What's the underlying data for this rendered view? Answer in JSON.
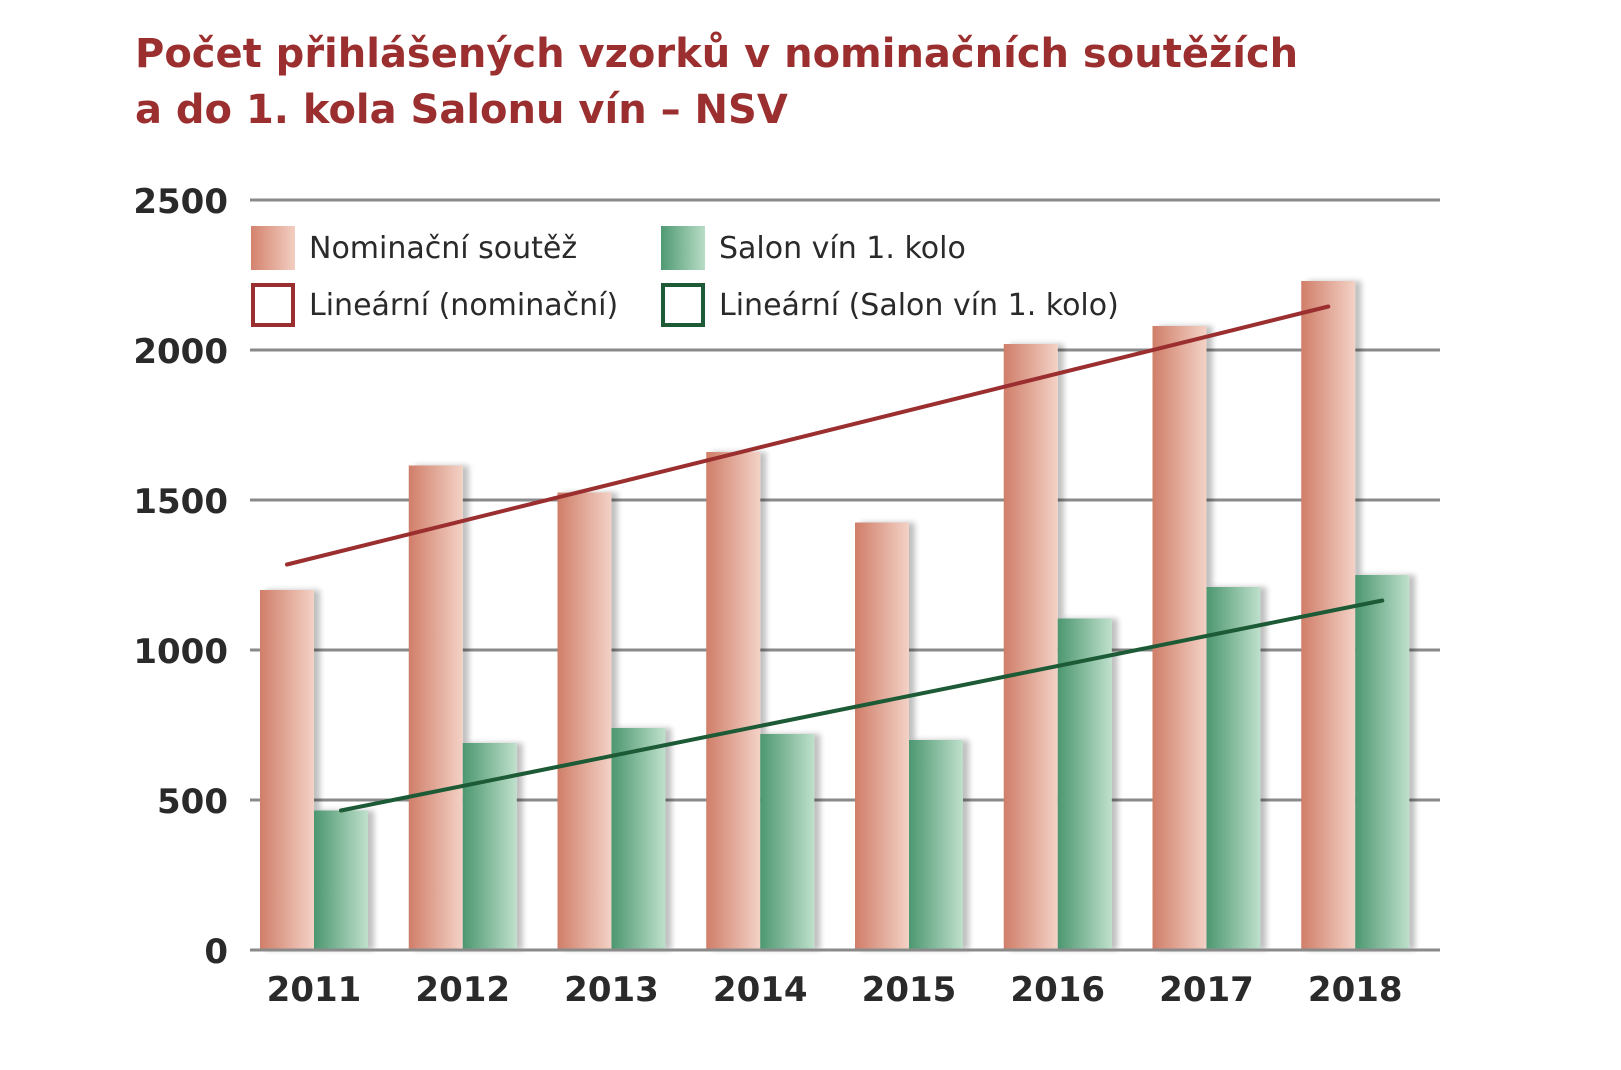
{
  "title_lines": [
    "Počet přihlášených vzorků v nominačních soutěžích",
    "a do 1. kola Salonu vín – NSV"
  ],
  "colors": {
    "title": "#9b2f2f",
    "nominacni": "#d9887a",
    "salon": "#5aa27d",
    "trend_nominacni": "#9b2f2f",
    "trend_salon": "#1d5a36",
    "grid": "#8a8a8a"
  },
  "legend": {
    "nominacni": "Nominační soutěž",
    "salon": "Salon vín 1. kolo",
    "linearni_nominacni": "Lineární (nominační)",
    "linearni_salon": "Lineární (Salon vín 1. kolo)"
  },
  "chart_data": {
    "type": "bar",
    "title": "Počet přihlášených vzorků v nominačních soutěžích a do 1. kola Salonu vín – NSV",
    "categories": [
      "2011",
      "2012",
      "2013",
      "2014",
      "2015",
      "2016",
      "2017",
      "2018"
    ],
    "series": [
      {
        "name": "Nominační soutěž",
        "values": [
          1200,
          1615,
          1525,
          1660,
          1425,
          2020,
          2080,
          2230
        ]
      },
      {
        "name": "Salon vín 1. kolo",
        "values": [
          465,
          690,
          740,
          720,
          700,
          1105,
          1210,
          1250
        ]
      }
    ],
    "trendlines": [
      {
        "name": "Lineární (nominační)",
        "start": 1285,
        "end": 2145
      },
      {
        "name": "Lineární (Salon vín 1. kolo)",
        "start": 465,
        "end": 1165
      }
    ],
    "ylim": [
      0,
      2500
    ],
    "yticks": [
      "0",
      "500",
      "1000",
      "1500",
      "2000",
      "2500"
    ],
    "grid": true,
    "legend_position": "top-left"
  }
}
